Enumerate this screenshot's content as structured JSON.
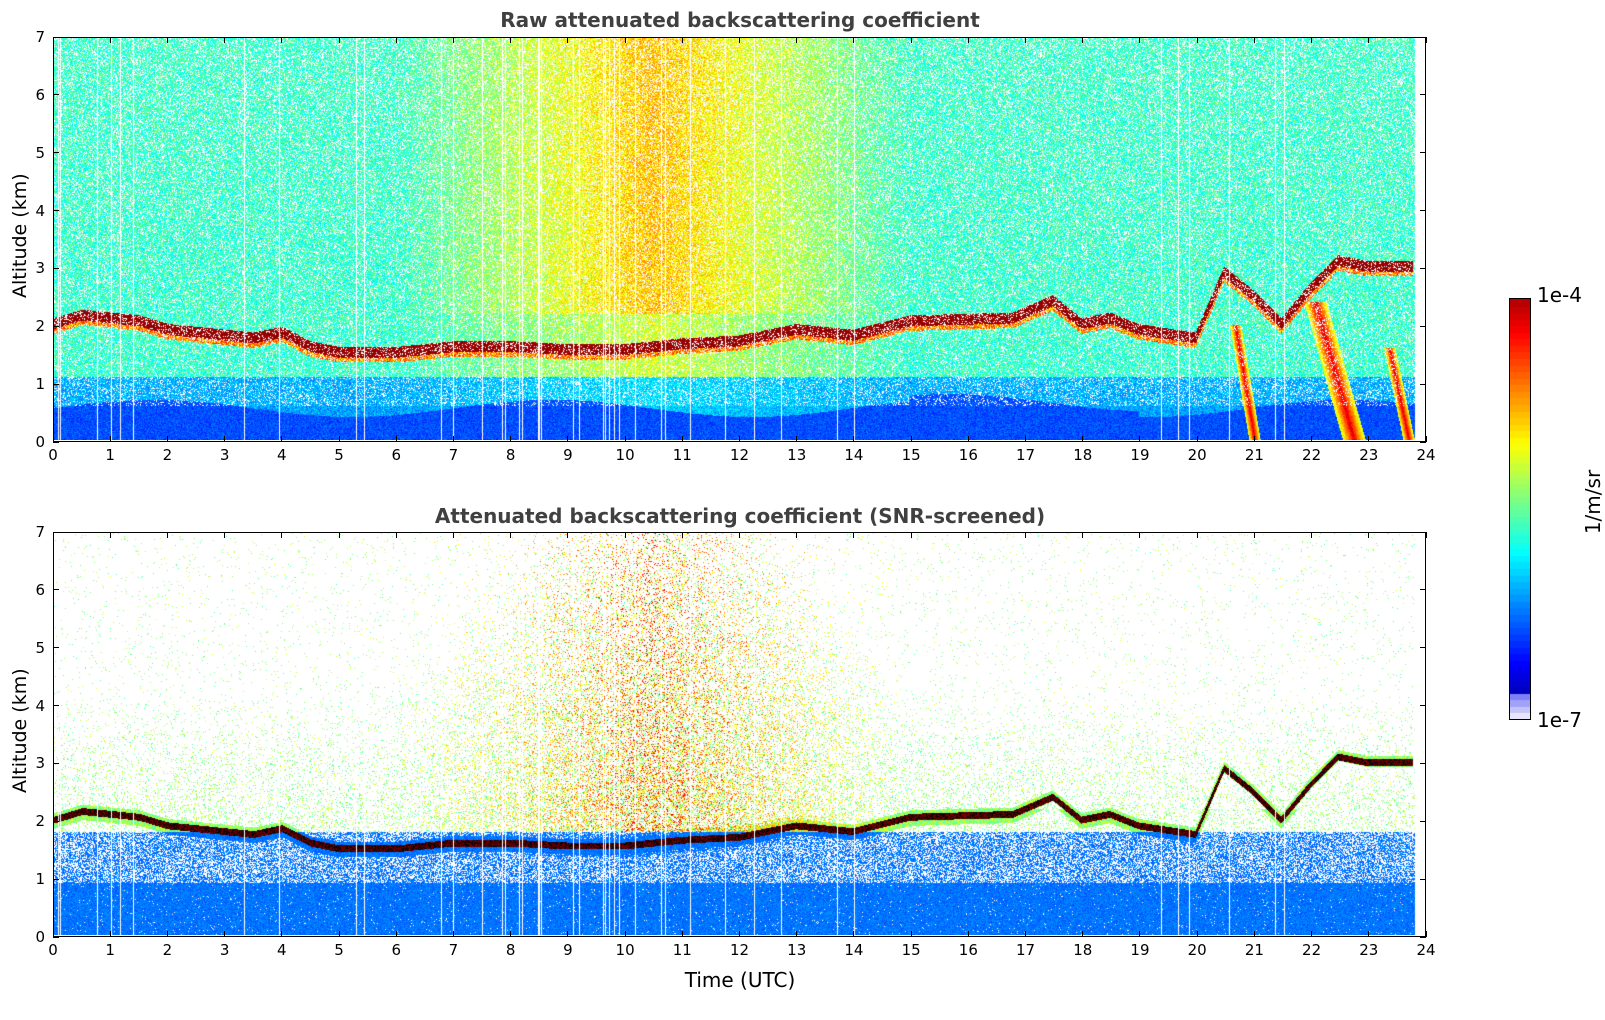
{
  "chart_data": [
    {
      "type": "heatmap",
      "title": "Raw attenuated backscattering coefficient",
      "ylabel": "Altitude (km)",
      "xlabel": "",
      "xlim": [
        0,
        24
      ],
      "ylim": [
        0,
        7
      ],
      "x_ticks": [
        "0",
        "1",
        "2",
        "3",
        "4",
        "5",
        "6",
        "7",
        "8",
        "9",
        "10",
        "11",
        "12",
        "13",
        "14",
        "15",
        "16",
        "17",
        "18",
        "19",
        "20",
        "21",
        "22",
        "23",
        "24"
      ],
      "y_ticks": [
        "0",
        "1",
        "2",
        "3",
        "4",
        "5",
        "6",
        "7"
      ],
      "screened": false,
      "data_end_hour": 23.85,
      "cloud_layer_km": [
        [
          0.0,
          2.0
        ],
        [
          0.5,
          2.15
        ],
        [
          1.0,
          2.1
        ],
        [
          1.5,
          2.05
        ],
        [
          2.0,
          1.9
        ],
        [
          2.5,
          1.85
        ],
        [
          3.0,
          1.8
        ],
        [
          3.5,
          1.75
        ],
        [
          4.0,
          1.85
        ],
        [
          4.5,
          1.6
        ],
        [
          5.0,
          1.5
        ],
        [
          5.5,
          1.5
        ],
        [
          6.0,
          1.5
        ],
        [
          6.5,
          1.55
        ],
        [
          7.0,
          1.6
        ],
        [
          8.0,
          1.6
        ],
        [
          9.0,
          1.55
        ],
        [
          10.0,
          1.55
        ],
        [
          11.0,
          1.65
        ],
        [
          12.0,
          1.7
        ],
        [
          13.0,
          1.9
        ],
        [
          14.0,
          1.8
        ],
        [
          15.0,
          2.05
        ],
        [
          16.8,
          2.1
        ],
        [
          17.5,
          2.4
        ],
        [
          18.0,
          2.0
        ],
        [
          18.5,
          2.1
        ],
        [
          19.0,
          1.9
        ],
        [
          20.0,
          1.75
        ],
        [
          20.5,
          2.9
        ],
        [
          21.0,
          2.5
        ],
        [
          21.5,
          2.0
        ],
        [
          22.0,
          2.6
        ],
        [
          22.5,
          3.1
        ],
        [
          23.0,
          3.0
        ],
        [
          23.8,
          3.0
        ]
      ],
      "precipitation_streaks_hour": [
        [
          20.7,
          21.1
        ],
        [
          22.1,
          22.9
        ],
        [
          23.4,
          23.8
        ]
      ]
    },
    {
      "type": "heatmap",
      "title": "Attenuated backscattering coefficient (SNR-screened)",
      "ylabel": "Altitude (km)",
      "xlabel": "Time (UTC)",
      "xlim": [
        0,
        24
      ],
      "ylim": [
        0,
        7
      ],
      "x_ticks": [
        "0",
        "1",
        "2",
        "3",
        "4",
        "5",
        "6",
        "7",
        "8",
        "9",
        "10",
        "11",
        "12",
        "13",
        "14",
        "15",
        "16",
        "17",
        "18",
        "19",
        "20",
        "21",
        "22",
        "23",
        "24"
      ],
      "y_ticks": [
        "0",
        "1",
        "2",
        "3",
        "4",
        "5",
        "6",
        "7"
      ],
      "screened": true,
      "data_end_hour": 23.85
    }
  ],
  "colorbar": {
    "max_label": "1e-4",
    "min_label": "1e-7",
    "unit": "1/m/sr",
    "colormap": "jet",
    "scale": "log"
  }
}
